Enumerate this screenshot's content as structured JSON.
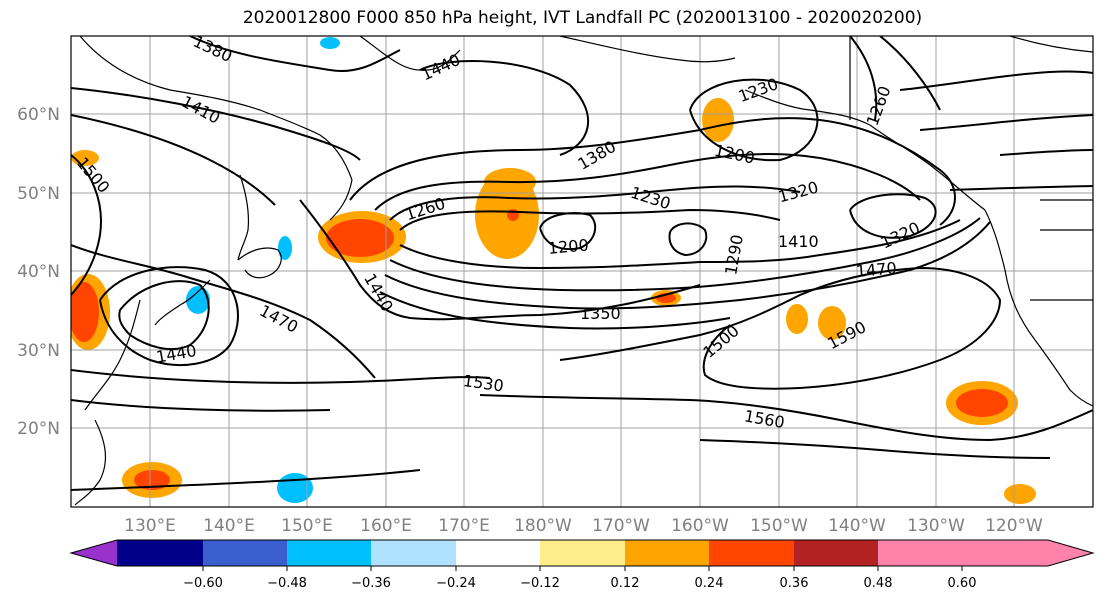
{
  "title": "2020012800 F000 850 hPa height, IVT Landfall PC (2020013100 - 2020020200)",
  "latitude_labels": [
    "60°N",
    "50°N",
    "40°N",
    "30°N",
    "20°N"
  ],
  "longitude_labels": [
    "130°E",
    "140°E",
    "150°E",
    "160°E",
    "170°E",
    "180°W",
    "170°W",
    "160°W",
    "150°W",
    "140°W",
    "130°W",
    "120°W"
  ],
  "contour_labels": [
    {
      "text": "1380"
    },
    {
      "text": "1440"
    },
    {
      "text": "1410"
    },
    {
      "text": "1500"
    },
    {
      "text": "1380"
    },
    {
      "text": "1230"
    },
    {
      "text": "1260"
    },
    {
      "text": "1200"
    },
    {
      "text": "1260"
    },
    {
      "text": "1230"
    },
    {
      "text": "1200"
    },
    {
      "text": "1320"
    },
    {
      "text": "1290"
    },
    {
      "text": "1410"
    },
    {
      "text": "1320"
    },
    {
      "text": "1470"
    },
    {
      "text": "1440"
    },
    {
      "text": "1470"
    },
    {
      "text": "1440"
    },
    {
      "text": "1350"
    },
    {
      "text": "1500"
    },
    {
      "text": "1590"
    },
    {
      "text": "1530"
    },
    {
      "text": "1560"
    }
  ],
  "colorbar": {
    "tick_labels": [
      "−0.60",
      "−0.48",
      "−0.36",
      "−0.24",
      "−0.12",
      "0.12",
      "0.24",
      "0.36",
      "0.48",
      "0.60"
    ],
    "colors": [
      "#9932cc",
      "#00008b",
      "#3a5fcd",
      "#00bfff",
      "#b0e2ff",
      "#ffffff",
      "#ffec8b",
      "#ffa500",
      "#ff4500",
      "#b22222",
      "#ff82ab"
    ]
  }
}
